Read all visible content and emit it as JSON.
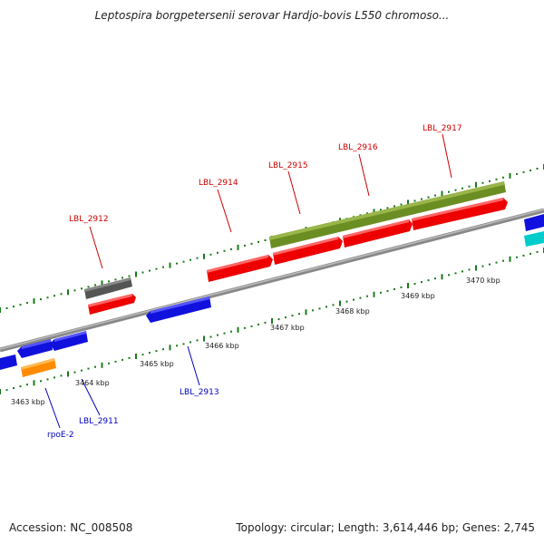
{
  "title": "Leptospira borgpetersenii serovar Hardjo-bovis L550 chromoso...",
  "footer": {
    "accession": "Accession: NC_008508",
    "summary": "Topology: circular; Length: 3,614,446 bp; Genes: 2,745"
  },
  "colors": {
    "red": "#ee0000",
    "blue": "#1111dd",
    "green": "#6b8e23",
    "gray": "#555555",
    "orange": "#ff8c00",
    "cyan": "#00cccc",
    "label_red": "#cc0000",
    "label_blue": "#0000bb",
    "tick_green": "#1a7a1a"
  },
  "kbp_labels": [
    "3463 kbp",
    "3464 kbp",
    "3465 kbp",
    "3466 kbp",
    "3467 kbp",
    "3468 kbp",
    "3469 kbp",
    "3470 kbp"
  ],
  "gene_labels": {
    "top": [
      "LBL_2912",
      "LBL_2914",
      "LBL_2915",
      "LBL_2916",
      "LBL_2917"
    ],
    "bottom": [
      "rpoE-2",
      "LBL_2911",
      "LBL_2913"
    ]
  }
}
